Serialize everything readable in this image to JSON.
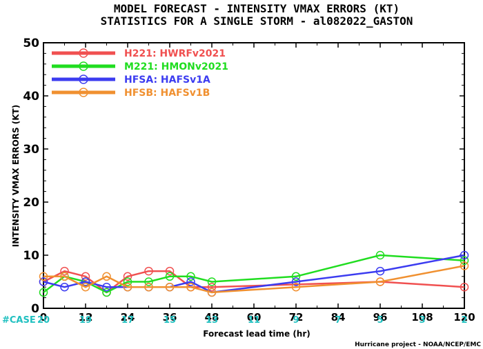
{
  "chart_data": {
    "type": "line",
    "title": "MODEL FORECAST - INTENSITY VMAX ERRORS (KT)",
    "subtitle": "STATISTICS FOR A SINGLE STORM - al082022_GASTON",
    "xlabel": "Forecast lead time (hr)",
    "ylabel": "INTENSITY VMAX ERRORS (KT)",
    "xlim": [
      0,
      120
    ],
    "ylim": [
      0,
      50
    ],
    "x_ticks": [
      0,
      12,
      24,
      36,
      48,
      60,
      72,
      84,
      96,
      108,
      120
    ],
    "y_ticks": [
      0,
      10,
      20,
      30,
      40,
      50
    ],
    "x_tick_labels": [
      "0",
      "12",
      "24",
      "36",
      "48",
      "60",
      "72",
      "84",
      "96",
      "108",
      "120"
    ],
    "y_tick_labels": [
      "0",
      "10",
      "20",
      "30",
      "40",
      "50"
    ],
    "grid": false,
    "legend_placement": "top-left",
    "series": [
      {
        "name": "H221: HWRFv2021",
        "color": "#f05050",
        "points": [
          [
            0,
            5
          ],
          [
            6,
            7
          ],
          [
            12,
            6
          ],
          [
            18,
            3
          ],
          [
            24,
            6
          ],
          [
            30,
            7
          ],
          [
            36,
            7
          ],
          [
            42,
            4
          ],
          [
            48,
            4
          ],
          [
            96,
            5
          ],
          [
            120,
            4
          ]
        ]
      },
      {
        "name": "M221: HMONv2021",
        "color": "#20dd20",
        "points": [
          [
            0,
            3
          ],
          [
            6,
            6
          ],
          [
            12,
            5
          ],
          [
            18,
            3
          ],
          [
            24,
            5
          ],
          [
            30,
            5
          ],
          [
            36,
            6
          ],
          [
            42,
            6
          ],
          [
            48,
            5
          ],
          [
            72,
            6
          ],
          [
            96,
            10
          ],
          [
            120,
            9
          ]
        ]
      },
      {
        "name": "HFSA: HAFSv1A",
        "color": "#3c3cf0",
        "points": [
          [
            0,
            5
          ],
          [
            6,
            4
          ],
          [
            12,
            5
          ],
          [
            18,
            4
          ],
          [
            24,
            4
          ],
          [
            30,
            4
          ],
          [
            36,
            4
          ],
          [
            42,
            5
          ],
          [
            48,
            3
          ],
          [
            72,
            5
          ],
          [
            96,
            7
          ],
          [
            120,
            10
          ]
        ]
      },
      {
        "name": "HFSB: HAFSv1B",
        "color": "#f09030",
        "points": [
          [
            0,
            6
          ],
          [
            6,
            6
          ],
          [
            12,
            4
          ],
          [
            18,
            6
          ],
          [
            24,
            4
          ],
          [
            30,
            4
          ],
          [
            36,
            4
          ],
          [
            42,
            4
          ],
          [
            48,
            3
          ],
          [
            72,
            4
          ],
          [
            96,
            5
          ],
          [
            120,
            8
          ]
        ]
      }
    ],
    "case_label": "#CASE",
    "cases": [
      {
        "x": 0,
        "count": "20"
      },
      {
        "x": 12,
        "count": "19"
      },
      {
        "x": 24,
        "count": "17"
      },
      {
        "x": 36,
        "count": "15"
      },
      {
        "x": 48,
        "count": "13"
      },
      {
        "x": 60,
        "count": "11"
      },
      {
        "x": 72,
        "count": "9"
      },
      {
        "x": 84,
        "count": "7"
      },
      {
        "x": 96,
        "count": "5"
      },
      {
        "x": 108,
        "count": "3"
      },
      {
        "x": 120,
        "count": "2"
      }
    ],
    "case_color": "#20c0c0",
    "credit": "Hurricane project - NOAA/NCEP/EMC"
  }
}
